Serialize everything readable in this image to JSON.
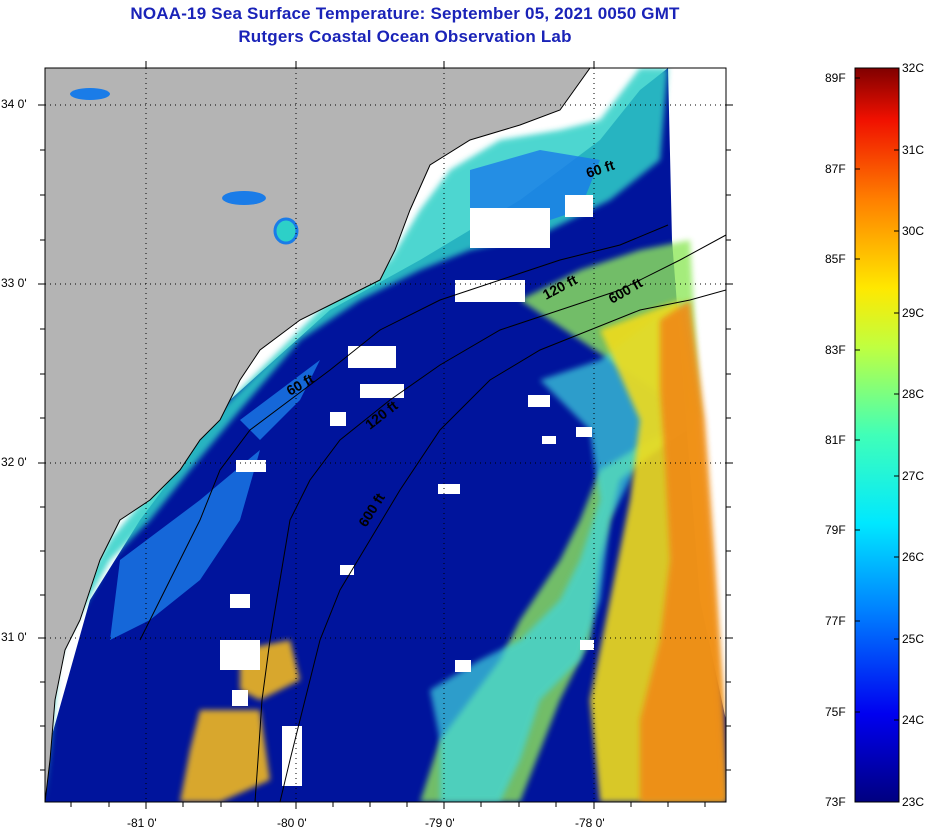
{
  "header": {
    "title_line1": "NOAA-19 Sea Surface Temperature:  September 05, 2021 0050 GMT",
    "title_line2": "Rutgers Coastal Ocean Observation Lab"
  },
  "map": {
    "lat_labels": [
      "34 0'",
      "33 0'",
      "32 0'",
      "31 0'"
    ],
    "lon_labels": [
      "-81 0'",
      "-80 0'",
      "-79 0'",
      "-78 0'"
    ],
    "contour_labels": [
      "60 ft",
      "120 ft",
      "600 ft",
      "60 ft",
      "120 ft",
      "600 ft"
    ],
    "colors": {
      "land": "#b4b4b4",
      "cloud": "#ffffff",
      "cold": "#00149c",
      "mid": "#1fb5f0",
      "warm_yellow": "#f0dc1e",
      "warm_orange": "#f08a14"
    }
  },
  "colorbar": {
    "fahrenheit": [
      "89F",
      "87F",
      "85F",
      "83F",
      "81F",
      "79F",
      "77F",
      "75F",
      "73F"
    ],
    "celsius": [
      "32C",
      "31C",
      "30C",
      "29C",
      "28C",
      "27C",
      "26C",
      "25C",
      "24C",
      "23C"
    ],
    "min_c": 23,
    "max_c": 32
  }
}
